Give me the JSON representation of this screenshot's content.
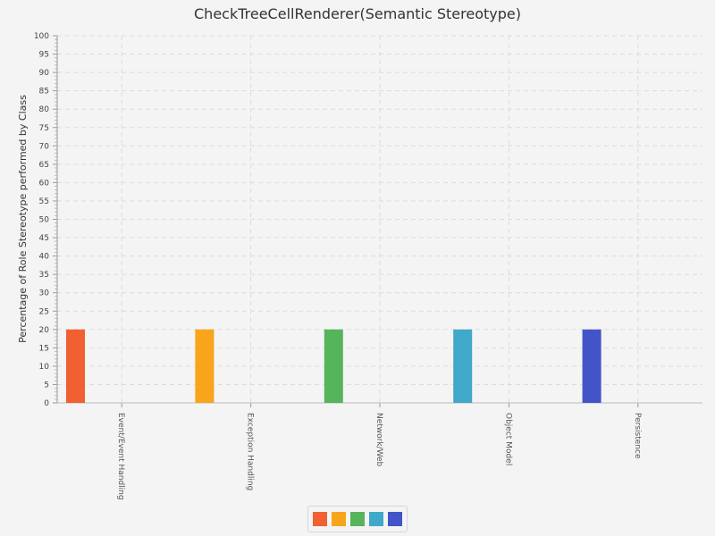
{
  "chart_data": {
    "type": "bar",
    "title": "CheckTreeCellRenderer(Semantic Stereotype)",
    "xlabel": "",
    "ylabel": "Percentage of Role Stereotype performed by Class",
    "ylim": [
      0,
      100
    ],
    "ytick_step": 5,
    "categories": [
      "Event/Event Handling",
      "Exception Handling",
      "Network/Web",
      "Object Model",
      "Persistence"
    ],
    "values": [
      20,
      20,
      20,
      20,
      20
    ],
    "colors": [
      "#f06030",
      "#f8a51c",
      "#56b45a",
      "#40a8c8",
      "#4354c8"
    ],
    "grid": true,
    "legend_position": "bottom"
  }
}
